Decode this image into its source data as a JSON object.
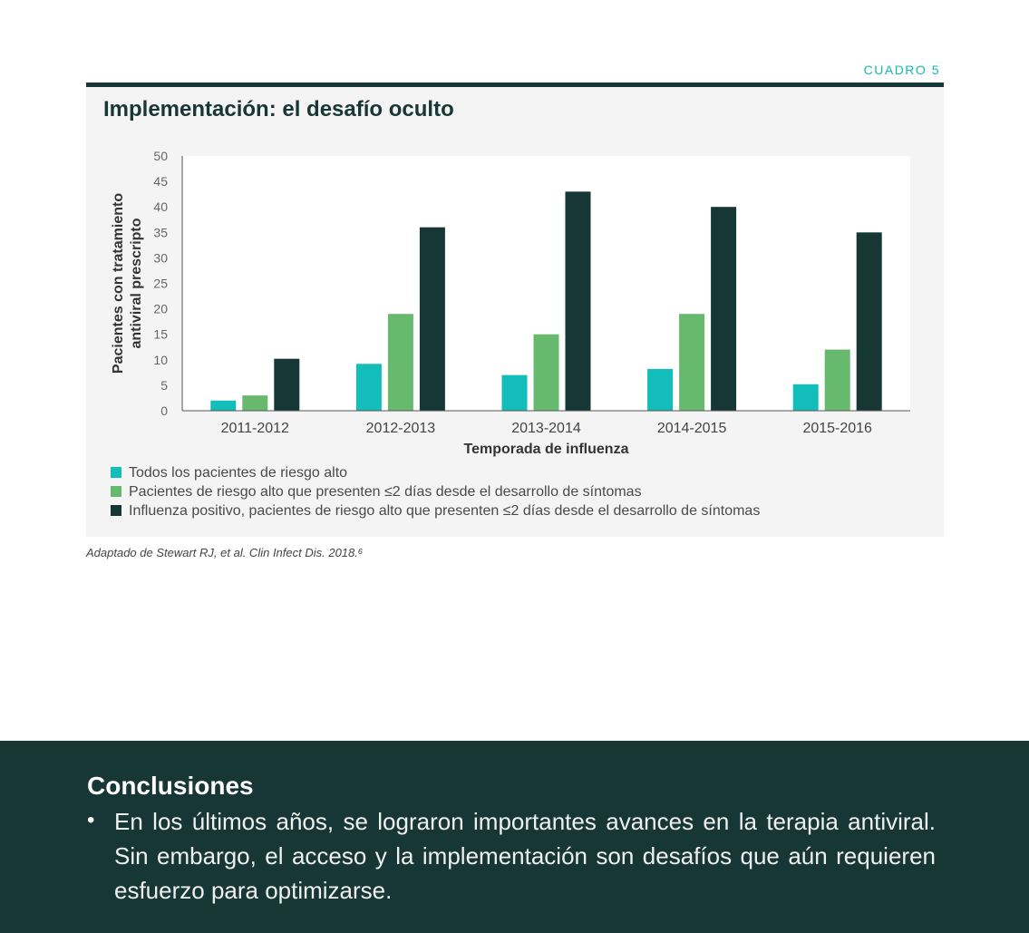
{
  "header": {
    "box_label": "CUADRO 5"
  },
  "panel": {
    "title": "Implementación: el desafío oculto"
  },
  "chart_data": {
    "type": "bar",
    "title": "Implementación: el desafío oculto",
    "xlabel": "Temporada de influenza",
    "ylabel_lines": [
      "Pacientes con tratamiento",
      "antiviral prescripto"
    ],
    "ylim": [
      0,
      50
    ],
    "yticks": [
      0,
      5,
      10,
      15,
      20,
      25,
      30,
      35,
      40,
      45,
      50
    ],
    "categories": [
      "2011-2012",
      "2012-2013",
      "2013-2014",
      "2014-2015",
      "2015-2016"
    ],
    "grid": false,
    "legend_position": "bottom-left",
    "series": [
      {
        "name": "Todos los pacientes de riesgo alto",
        "color": "#13bdb9",
        "values": [
          2,
          9.2,
          7,
          8.2,
          5.2
        ]
      },
      {
        "name": "Pacientes de riesgo alto que presenten ≤2 días desde el desarrollo de síntomas",
        "color": "#67b96e",
        "values": [
          3,
          19,
          15,
          19,
          12
        ]
      },
      {
        "name": "Influenza positivo, pacientes de riesgo alto que presenten ≤2 días desde el desarrollo de síntomas",
        "color": "#173736",
        "values": [
          10.2,
          36,
          43,
          40,
          35
        ]
      }
    ]
  },
  "source": {
    "text": "Adaptado de Stewart RJ, et al. Clin Infect Dis. 2018.⁶"
  },
  "conclusions": {
    "title": "Conclusiones",
    "bullet": "•",
    "text": "En los últimos años, se lograron importantes avances en la terapia antiviral. Sin embargo, el acceso y la implementación son desafíos que aún requieren esfuerzo para optimizarse."
  }
}
